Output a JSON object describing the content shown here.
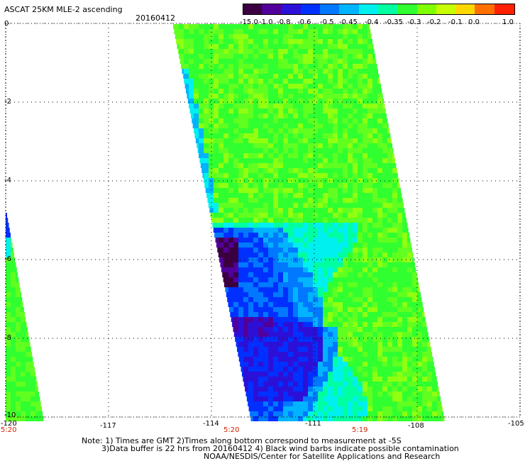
{
  "header": {
    "title": "ASCAT 25KM MLE-2 ascending",
    "date": "20160412"
  },
  "colorbar": {
    "ticks": [
      "-15.0",
      "-1.0",
      "-0.8",
      "-0.6",
      "-0.5",
      "-0.45",
      "-0.4",
      "-0.35",
      "-0.3",
      "-0.2",
      "-0.1",
      "0.0",
      "1.0"
    ],
    "colors": [
      "#3a0040",
      "#52009a",
      "#2d10d8",
      "#0030ff",
      "#0078ff",
      "#00b4ff",
      "#00f0f0",
      "#00ffa0",
      "#30ff30",
      "#80ff00",
      "#c8ff00",
      "#ffd800",
      "#ff7000",
      "#ff2000"
    ]
  },
  "axes": {
    "x_ticks": [
      "-120",
      "-117",
      "-114",
      "-111",
      "-108",
      "-105"
    ],
    "y_ticks": [
      "0",
      "-2",
      "-4",
      "-6",
      "-8",
      "-10"
    ],
    "times": [
      "5:20",
      "5:20",
      "5:19"
    ]
  },
  "footer": {
    "note_line1": "Note: 1) Times are GMT 2)Times along bottom correspond to measurement at -5S",
    "note_line2": "3)Data buffer is 22 hrs from 20160412 4) Black wind barbs indicate possible contamination",
    "credit": "NOAA/NESDIS/Center for Satellite Applications and Research"
  }
}
